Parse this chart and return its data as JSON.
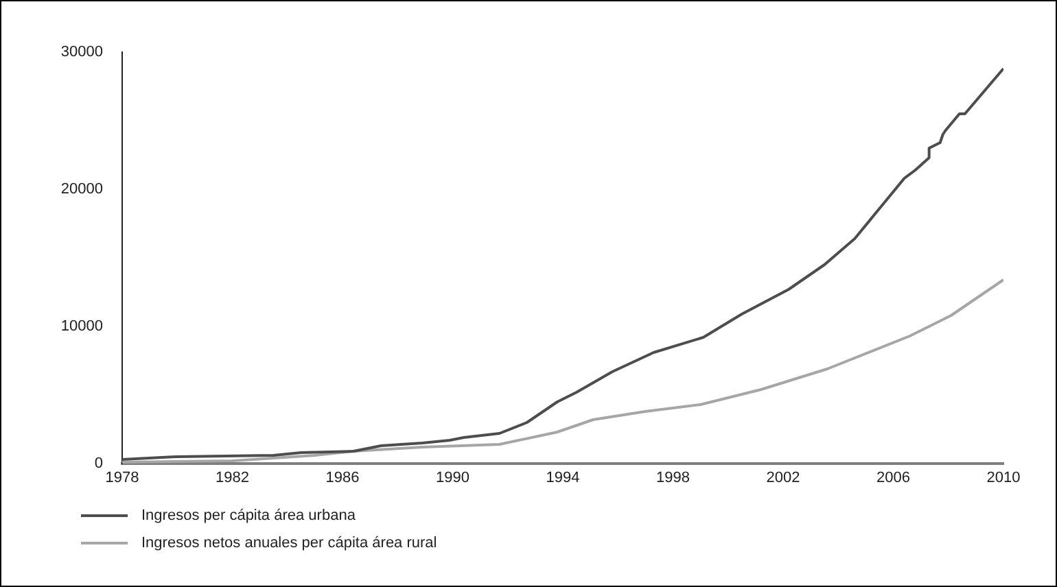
{
  "chart_data": {
    "type": "line",
    "xlim": [
      1978,
      2010
    ],
    "xticks": [
      1978,
      1982,
      1986,
      1990,
      1994,
      1998,
      2002,
      2006,
      2010
    ],
    "ylim": [
      0,
      30000
    ],
    "yticks": [
      0,
      10000,
      20000,
      30000
    ],
    "grid": false,
    "legend": "bottom left",
    "marker": "none",
    "line_style": "solid",
    "series": [
      {
        "name": "Ingresos per cápita área urbana",
        "color": "#4d4d4d",
        "x": [
          1978,
          1980,
          1983.5,
          1984.5,
          1986.4,
          1987.4,
          1988.9,
          1989.9,
          1990.4,
          1991.7,
          1992.7,
          1993.8,
          1994.5,
          1995.8,
          1997.3,
          1999.1,
          2000.5,
          2002.2,
          2003.5,
          2004.6,
          2006.4,
          2006.8,
          2007.3,
          2007.3,
          2007.7,
          2007.8,
          2007.9,
          2008.4,
          2008.6,
          2010
        ],
        "values": [
          300,
          500,
          600,
          800,
          900,
          1300,
          1500,
          1700,
          1900,
          2200,
          3000,
          4500,
          5200,
          6700,
          8100,
          9200,
          10900,
          12700,
          14500,
          16400,
          20800,
          21400,
          22300,
          23000,
          23400,
          24000,
          24300,
          25500,
          25500,
          28800
        ]
      },
      {
        "name": "Ingresos netos anuales per cápita área rural",
        "color": "#a6a6a6",
        "x": [
          1978,
          1982,
          1985,
          1986.4,
          1988.9,
          1991.7,
          1993.8,
          1995.1,
          1997,
          1999,
          2001.2,
          2003.6,
          2006.6,
          2008.1,
          2010
        ],
        "values": [
          100,
          200,
          600,
          900,
          1200,
          1400,
          2300,
          3200,
          3800,
          4300,
          5400,
          6900,
          9300,
          10800,
          13400
        ]
      }
    ]
  }
}
